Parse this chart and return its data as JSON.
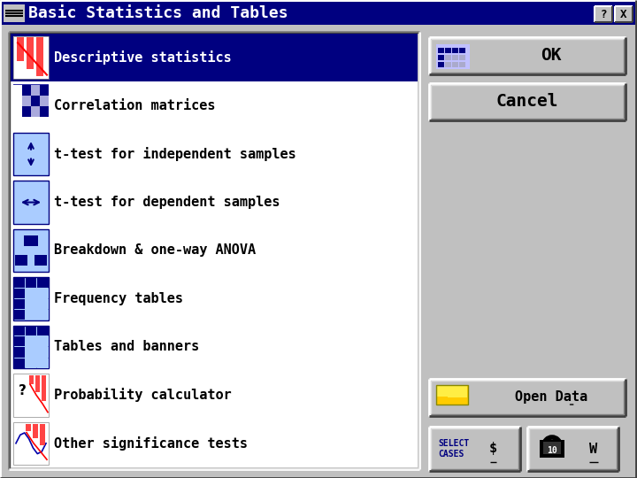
{
  "title": "Basic Statistics and Tables",
  "title_bar_color": "#000080",
  "title_text_color": "#ffffff",
  "bg_color": "#c0c0c0",
  "list_bg": "#ffffff",
  "list_selected_bg": "#000080",
  "list_selected_text": "#ffffff",
  "list_normal_text": "#000000",
  "menu_items": [
    "Descriptive statistics",
    "Correlation matrices",
    "t-test for independent samples",
    "t-test for dependent samples",
    "Breakdown & one-way ANOVA",
    "Frequency tables",
    "Tables and banners",
    "Probability calculator",
    "Other significance tests"
  ],
  "figw": 7.2,
  "figh": 5.4,
  "dpi": 100
}
